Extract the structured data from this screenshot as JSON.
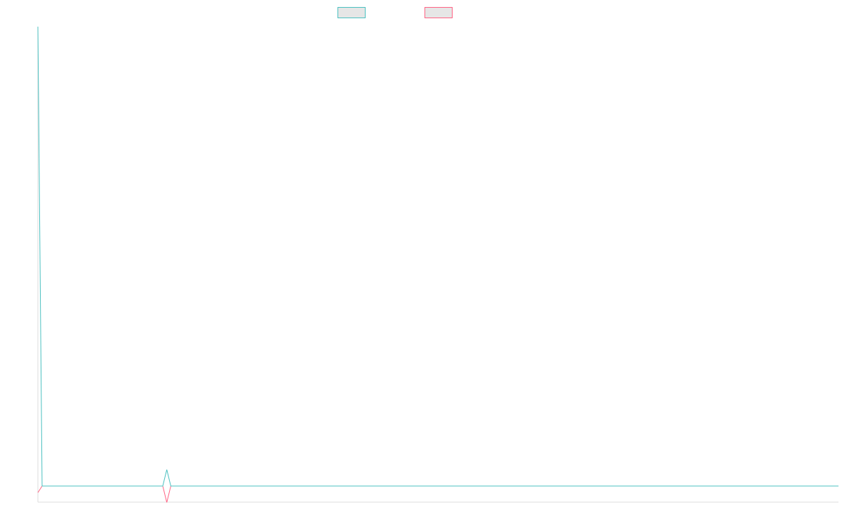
{
  "chart_data": {
    "type": "line",
    "title": "",
    "xlabel": "",
    "ylabel": "",
    "legend_position": "top-center",
    "grid": false,
    "x": [
      0,
      1,
      2,
      3,
      4,
      5,
      6,
      7,
      8,
      9,
      10,
      11,
      12,
      13,
      14,
      15,
      16,
      17,
      18,
      19,
      20,
      21,
      22,
      23,
      24,
      25,
      26,
      27,
      28,
      29,
      30,
      31,
      32,
      33,
      34,
      35,
      36,
      37,
      38,
      39,
      40,
      41,
      42,
      43,
      44,
      45,
      46,
      47,
      48,
      49,
      50,
      51,
      52,
      53,
      54,
      55,
      56,
      57,
      58,
      59,
      60,
      61,
      62,
      63,
      64,
      65,
      66,
      67,
      68,
      69,
      70,
      71,
      72,
      73,
      74,
      75,
      76,
      77,
      78,
      79,
      80,
      81,
      82,
      83,
      84,
      85,
      86,
      87,
      88,
      89,
      90,
      91,
      92,
      93,
      94,
      95,
      96,
      97,
      98,
      99,
      100,
      101,
      102,
      103,
      104,
      105,
      106,
      107,
      108,
      109,
      110,
      111,
      112,
      113,
      114,
      115,
      116,
      117,
      118,
      119,
      120,
      121,
      122,
      123,
      124,
      125,
      126,
      127,
      128,
      129,
      130,
      131,
      132,
      133,
      134,
      135,
      136,
      137,
      138,
      139,
      140,
      141,
      142,
      143,
      144,
      145,
      146,
      147,
      148,
      149,
      150,
      151,
      152,
      153,
      154,
      155,
      156,
      157,
      158,
      159,
      160,
      161,
      162,
      163,
      164,
      165,
      166,
      167,
      168,
      169,
      170,
      171,
      172,
      173,
      174,
      175,
      176,
      177,
      178,
      179,
      180,
      181,
      182,
      183,
      184,
      185,
      186,
      187,
      188,
      189,
      190,
      191,
      192,
      193,
      194,
      195,
      196,
      197,
      198,
      199
    ],
    "xlim": [
      0,
      199
    ],
    "ylim": [
      -1,
      28
    ],
    "series": [
      {
        "name": "",
        "color": "#4bc0c0",
        "values": [
          28,
          0,
          0,
          0,
          0,
          0,
          0,
          0,
          0,
          0,
          0,
          0,
          0,
          0,
          0,
          0,
          0,
          0,
          0,
          0,
          0,
          0,
          0,
          0,
          0,
          0,
          0,
          0,
          0,
          0,
          0,
          0,
          1,
          0,
          0,
          0,
          0,
          0,
          0,
          0,
          0,
          0,
          0,
          0,
          0,
          0,
          0,
          0,
          0,
          0,
          0,
          0,
          0,
          0,
          0,
          0,
          0,
          0,
          0,
          0,
          0,
          0,
          0,
          0,
          0,
          0,
          0,
          0,
          0,
          0,
          0,
          0,
          0,
          0,
          0,
          0,
          0,
          0,
          0,
          0,
          0,
          0,
          0,
          0,
          0,
          0,
          0,
          0,
          0,
          0,
          0,
          0,
          0,
          0,
          0,
          0,
          0,
          0,
          0,
          0,
          0,
          0,
          0,
          0,
          0,
          0,
          0,
          0,
          0,
          0,
          0,
          0,
          0,
          0,
          0,
          0,
          0,
          0,
          0,
          0,
          0,
          0,
          0,
          0,
          0,
          0,
          0,
          0,
          0,
          0,
          0,
          0,
          0,
          0,
          0,
          0,
          0,
          0,
          0,
          0,
          0,
          0,
          0,
          0,
          0,
          0,
          0,
          0,
          0,
          0,
          0,
          0,
          0,
          0,
          0,
          0,
          0,
          0,
          0,
          0,
          0,
          0,
          0,
          0,
          0,
          0,
          0,
          0,
          0,
          0,
          0,
          0,
          0,
          0,
          0,
          0,
          0,
          0,
          0,
          0,
          0,
          0,
          0,
          0,
          0,
          0,
          0,
          0,
          0,
          0,
          0,
          0,
          0,
          0,
          0,
          0,
          0,
          0,
          0,
          0
        ]
      },
      {
        "name": "",
        "color": "#ff6384",
        "values": [
          -0.4,
          0,
          0,
          0,
          0,
          0,
          0,
          0,
          0,
          0,
          0,
          0,
          0,
          0,
          0,
          0,
          0,
          0,
          0,
          0,
          0,
          0,
          0,
          0,
          0,
          0,
          0,
          0,
          0,
          0,
          0,
          0,
          -1,
          0,
          0,
          0,
          0,
          0,
          0,
          0,
          0,
          0,
          0,
          0,
          0,
          0,
          0,
          0,
          0,
          0,
          0,
          0,
          0,
          0,
          0,
          0,
          0,
          0,
          0,
          0,
          0,
          0,
          0,
          0,
          0,
          0,
          0,
          0,
          0,
          0,
          0,
          0,
          0,
          0,
          0,
          0,
          0,
          0,
          0,
          0,
          0,
          0,
          0,
          0,
          0,
          0,
          0,
          0,
          0,
          0,
          0,
          0,
          0,
          0,
          0,
          0,
          0,
          0,
          0,
          0,
          0,
          0,
          0,
          0,
          0,
          0,
          0,
          0,
          0,
          0,
          0,
          0,
          0,
          0,
          0,
          0,
          0,
          0,
          0,
          0,
          0,
          0,
          0,
          0,
          0,
          0,
          0,
          0,
          0,
          0,
          0,
          0,
          0,
          0,
          0,
          0,
          0,
          0,
          0,
          0,
          0,
          0,
          0,
          0,
          0,
          0,
          0,
          0,
          0,
          0,
          0,
          0,
          0,
          0,
          0,
          0,
          0,
          0,
          0,
          0,
          0,
          0,
          0,
          0,
          0,
          0,
          0,
          0,
          0,
          0,
          0,
          0,
          0,
          0,
          0,
          0,
          0,
          0,
          0,
          0,
          0,
          0,
          0,
          0,
          0,
          0,
          0,
          0,
          0,
          0,
          0,
          0,
          0,
          0,
          0,
          0,
          0,
          0,
          0,
          0
        ]
      }
    ],
    "legend_swatch_fill": "#e6e6e6",
    "axis_color": "#dddddd"
  }
}
